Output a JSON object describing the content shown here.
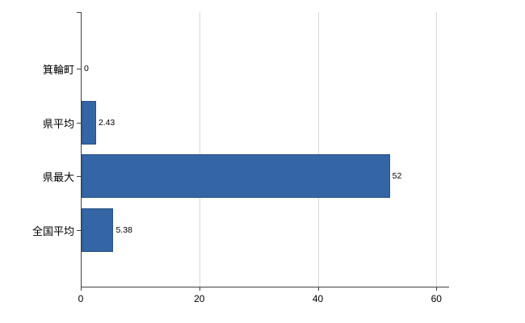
{
  "chart_data": {
    "type": "bar",
    "orientation": "horizontal",
    "title": "",
    "categories": [
      "箕輪町",
      "県平均",
      "県最大",
      "全国平均"
    ],
    "values": [
      0,
      2.43,
      52,
      5.38
    ],
    "value_labels": [
      "0",
      "2.43",
      "52",
      "5.38"
    ],
    "x_ticks": [
      0,
      20,
      40,
      60
    ],
    "x_tick_labels": [
      "0",
      "20",
      "40",
      "60"
    ],
    "xlim": [
      0,
      62
    ],
    "grid": "vertical-only",
    "legend": "none",
    "colors": {
      "bar": "#3465a4",
      "bar_border": "#2a5285",
      "axis": "#404040",
      "gridline": "#d9d9d9",
      "text": "#000000",
      "background": "#ffffff"
    }
  }
}
